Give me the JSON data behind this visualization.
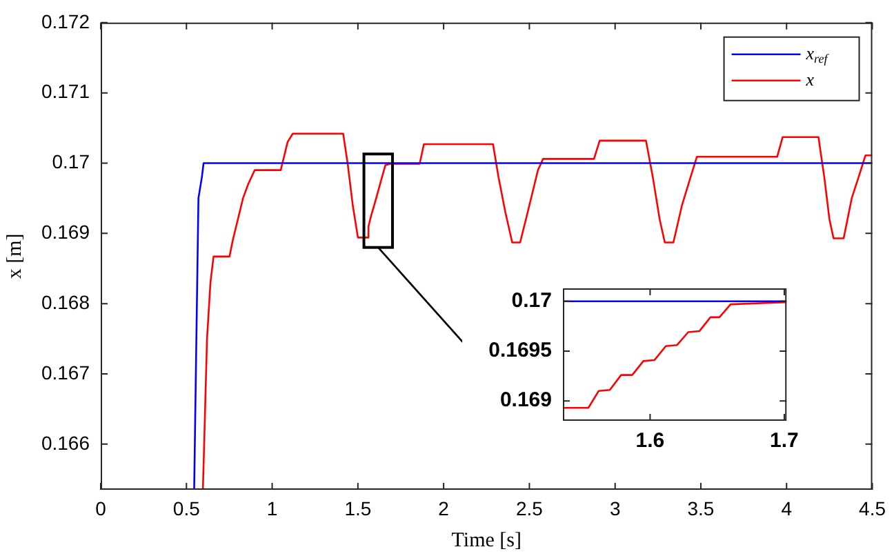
{
  "chart_data": [
    {
      "type": "line",
      "xlabel": "Time [s]",
      "ylabel": "x [m]",
      "xlim": [
        0,
        4.5
      ],
      "ylim": [
        0.16535,
        0.172
      ],
      "xticks": [
        0,
        0.5,
        1,
        1.5,
        2,
        2.5,
        3,
        3.5,
        4,
        4.5
      ],
      "yticks": [
        0.166,
        0.167,
        0.168,
        0.169,
        0.17,
        0.171,
        0.172
      ],
      "legend": "top right",
      "series": [
        {
          "name": "x$_{ref}$",
          "color": "#0000ff",
          "x": [
            0.545,
            0.57,
            0.59,
            0.6,
            4.5
          ],
          "values": [
            0.16535,
            0.1695,
            0.1698,
            0.17,
            0.17
          ]
        },
        {
          "name": "x",
          "color": "#ff0000",
          "x": [
            0.596,
            0.62,
            0.64,
            0.658,
            0.751,
            0.77,
            0.8,
            0.83,
            0.86,
            0.898,
            1.05,
            1.07,
            1.09,
            1.12,
            1.414,
            1.44,
            1.47,
            1.5,
            1.561,
            1.5617,
            1.578,
            1.595,
            1.612,
            1.628,
            1.645,
            1.66,
            1.687,
            1.86,
            1.885,
            2.288,
            2.32,
            2.36,
            2.4,
            2.446,
            2.48,
            2.52,
            2.55,
            2.58,
            2.877,
            2.91,
            3.18,
            3.22,
            3.26,
            3.29,
            3.34,
            3.39,
            3.44,
            3.477,
            3.945,
            3.977,
            4.186,
            4.22,
            4.25,
            4.274,
            4.333,
            4.38,
            4.42,
            4.46,
            4.5
          ],
          "values": [
            0.16535,
            0.1675,
            0.1683,
            0.16867,
            0.16867,
            0.1689,
            0.1692,
            0.1695,
            0.1697,
            0.1699,
            0.1699,
            0.1701,
            0.1703,
            0.17042,
            0.17042,
            0.17,
            0.1694,
            0.16894,
            0.16894,
            0.1691,
            0.16926,
            0.1694,
            0.16955,
            0.16969,
            0.16984,
            0.16997,
            0.16999,
            0.16999,
            0.17027,
            0.17027,
            0.1698,
            0.1693,
            0.16887,
            0.16887,
            0.1692,
            0.1696,
            0.1699,
            0.17006,
            0.17006,
            0.17032,
            0.17032,
            0.1698,
            0.1692,
            0.16887,
            0.16887,
            0.1694,
            0.1698,
            0.17009,
            0.17009,
            0.17037,
            0.17037,
            0.1698,
            0.1692,
            0.16893,
            0.16893,
            0.1695,
            0.1698,
            0.17011,
            0.17011
          ]
        }
      ]
    },
    {
      "type": "line",
      "xlim": [
        1.535,
        1.7017
      ],
      "ylim": [
        0.1688,
        0.17013
      ],
      "xticks": [
        1.6,
        1.7
      ],
      "yticks": [
        0.169,
        0.1695,
        0.17
      ],
      "series": [
        {
          "color": "#0000ff",
          "x": [
            1.535,
            1.7017
          ],
          "values": [
            0.17,
            0.17
          ]
        },
        {
          "color": "#ff0000",
          "x": [
            1.535,
            1.554,
            1.5617,
            1.57,
            1.5784,
            1.5867,
            1.595,
            1.6033,
            1.6117,
            1.62,
            1.6284,
            1.6367,
            1.645,
            1.6517,
            1.66,
            1.7,
            1.7017
          ],
          "values": [
            0.16893,
            0.16893,
            0.1691,
            0.16911,
            0.16926,
            0.16926,
            0.1694,
            0.16941,
            0.16955,
            0.16956,
            0.16969,
            0.1697,
            0.16984,
            0.16984,
            0.16997,
            0.16999,
            0.16999
          ]
        }
      ]
    }
  ]
}
